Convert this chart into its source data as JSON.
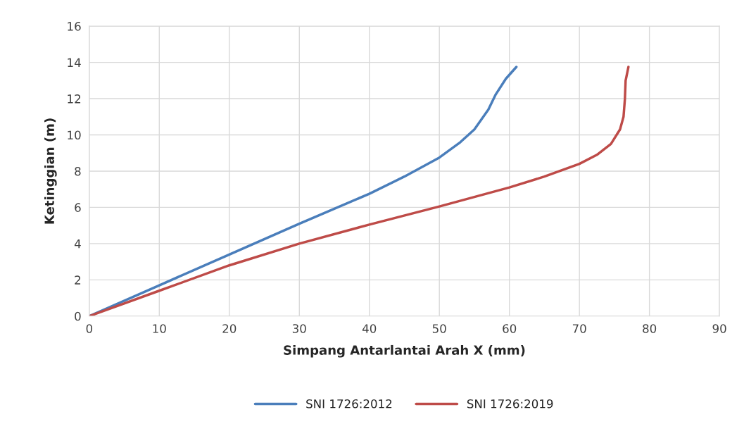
{
  "chart_data": {
    "type": "line",
    "xlabel": "Simpang Antarlantai Arah X (mm)",
    "ylabel": "Ketinggian (m)",
    "xlim": [
      0,
      90
    ],
    "xticks": [
      0,
      10,
      20,
      30,
      40,
      50,
      60,
      70,
      80,
      90
    ],
    "ylim": [
      0,
      16
    ],
    "yticks": [
      0,
      2,
      4,
      6,
      8,
      10,
      12,
      14,
      16
    ],
    "grid": true,
    "legend": "bottom",
    "marker": "none",
    "line_style": "solid",
    "series": [
      {
        "name": "SNI 1726:2012",
        "color": "#4a7ebb",
        "x": [
          0,
          10,
          20,
          30,
          40,
          45,
          50,
          53,
          55,
          57,
          58,
          59.5,
          61
        ],
        "values": [
          0,
          1.7,
          3.4,
          5.1,
          6.75,
          7.7,
          8.75,
          9.6,
          10.3,
          11.4,
          12.2,
          13.1,
          13.75
        ]
      },
      {
        "name": "SNI 1726:2019",
        "color": "#be4b48",
        "x": [
          0,
          10,
          20,
          30,
          40,
          50,
          60,
          65,
          70,
          72.5,
          74.5,
          75.8,
          76.3,
          76.5,
          76.6,
          77
        ],
        "values": [
          0,
          1.4,
          2.8,
          4.0,
          5.05,
          6.05,
          7.1,
          7.7,
          8.4,
          8.9,
          9.5,
          10.3,
          11.0,
          12.0,
          13.0,
          13.75
        ]
      }
    ]
  }
}
